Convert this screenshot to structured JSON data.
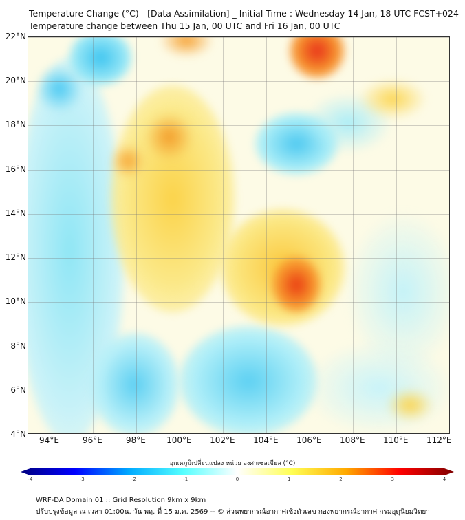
{
  "title": {
    "line1": "Temperature Change (°C) - [Data Assimilation] _ Initial Time : Wednesday 14 Jan, 18 UTC FCST+024",
    "line2": "Temperature change between Thu 15 Jan, 00 UTC and Fri 16 Jan, 00 UTC"
  },
  "map": {
    "lat_labels": [
      "22°N",
      "20°N",
      "18°N",
      "16°N",
      "14°N",
      "12°N",
      "10°N",
      "8°N",
      "6°N",
      "4°N"
    ],
    "lon_labels": [
      "94°E",
      "96°E",
      "98°E",
      "100°E",
      "102°E",
      "104°E",
      "106°E",
      "108°E",
      "110°E",
      "112°E"
    ],
    "lat_range": [
      4,
      22
    ],
    "lon_range": [
      93,
      112.5
    ]
  },
  "colorbar": {
    "label": "อุณหภูมิเปลี่ยนแปลง หน่วย องศาเซลเซียส (°C)",
    "ticks": [
      "-4",
      "-3",
      "-2",
      "-1",
      "0",
      "1",
      "2",
      "3",
      "4"
    ],
    "range": [
      -4,
      4
    ],
    "colors": [
      "#00007f",
      "#0000ff",
      "#00aaff",
      "#55ffff",
      "#ffffff",
      "#ffff55",
      "#ffaa00",
      "#ff0000",
      "#7f0000"
    ]
  },
  "footer": {
    "line1": "WRF-DA Domain 01 :: Grid Resolution 9km x 9km",
    "line2": "ปรับปรุงข้อมูล ณ เวลา 01:00น. วัน พฤ. ที่ 15 ม.ค. 2569 -- © ส่วนพยากรณ์อากาศเชิงตัวเลข กองพยากรณ์อากาศ กรมอุตุนิยมวิทยา"
  }
}
